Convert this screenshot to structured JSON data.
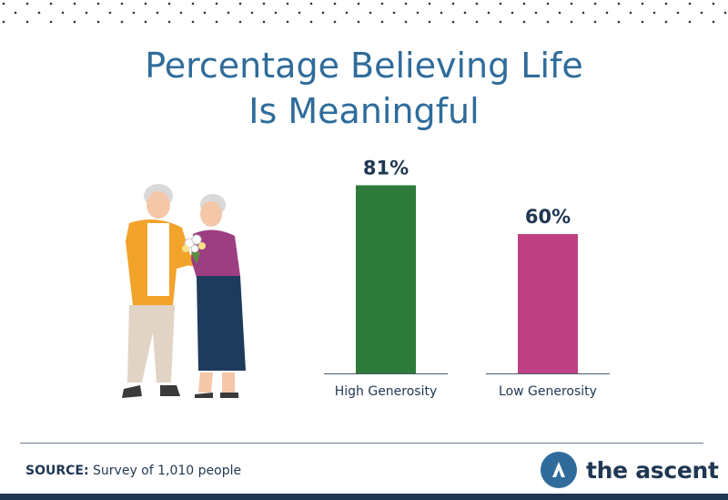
{
  "title_lines": [
    "Percentage Believing Life",
    "Is Meaningful"
  ],
  "source": {
    "label": "SOURCE:",
    "text": "Survey of 1,010 people"
  },
  "brand": {
    "name": "the ascent",
    "logo_icon": "ascent-logo-icon"
  },
  "illustration": {
    "icon": "elderly-couple-with-flowers-illustration"
  },
  "colors": {
    "title": "#2f6c9b",
    "navy": "#1f3752",
    "high": "#2e7a38",
    "low": "#c04183",
    "logo": "#2f6c9b"
  },
  "chart_data": {
    "type": "bar",
    "categories": [
      "High Generosity",
      "Low Generosity"
    ],
    "values": [
      81,
      60
    ],
    "value_labels": [
      "81%",
      "60%"
    ],
    "colors": [
      "#2e7a38",
      "#c04183"
    ],
    "title": "Percentage Believing Life Is Meaningful",
    "ylim": [
      0,
      100
    ],
    "grid": false
  }
}
